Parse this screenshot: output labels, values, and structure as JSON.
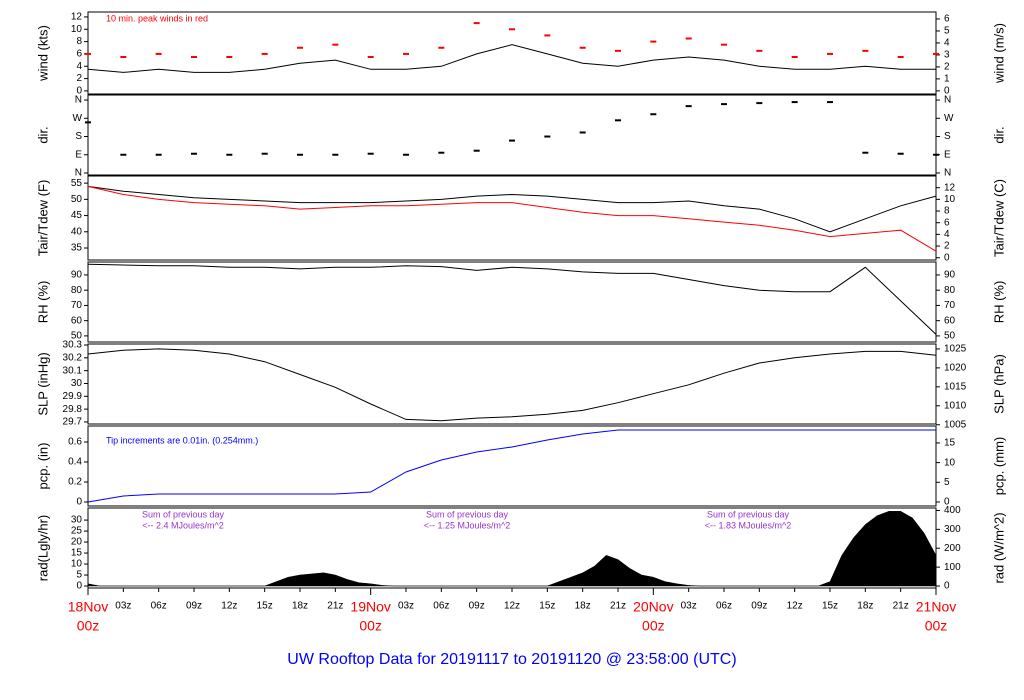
{
  "title": "UW Rooftop Data for 20191117  to  20191120 @ 23:58:00  (UTC)",
  "chart_data": [
    {
      "type": "line",
      "ylabel": "wind (kts)",
      "y2label": "wind (m/s)",
      "annotation": "10 min. peak winds in red",
      "xlim": [
        0,
        72
      ],
      "ylim": [
        -0.5,
        12.8
      ],
      "yticks": [
        0,
        2,
        4,
        6,
        8,
        10,
        12
      ],
      "y2lim": [
        -0.26,
        6.58
      ],
      "y2ticks": [
        0,
        1,
        2,
        3,
        4,
        5,
        6
      ],
      "x": [
        0,
        3,
        6,
        9,
        12,
        15,
        18,
        21,
        24,
        27,
        30,
        33,
        36,
        39,
        42,
        45,
        48,
        51,
        54,
        57,
        60,
        63,
        66,
        69,
        72
      ],
      "series": [
        {
          "color": "#000000",
          "kind": "line",
          "values": [
            3.5,
            3,
            3.5,
            3,
            3,
            3.5,
            4.5,
            5,
            3.5,
            3.5,
            4,
            6,
            7.5,
            6,
            4.5,
            4,
            5,
            5.5,
            5,
            4,
            3.5,
            3.5,
            4,
            3.5,
            3.5
          ]
        },
        {
          "color": "#ff0000",
          "kind": "dash",
          "values": [
            6,
            5.5,
            6,
            5.5,
            5.5,
            6,
            7,
            7.5,
            5.5,
            6,
            7,
            11,
            10,
            9,
            7,
            6.5,
            8,
            8.5,
            7.5,
            6.5,
            5.5,
            6,
            6.5,
            5.5,
            6
          ]
        }
      ]
    },
    {
      "type": "scatter",
      "ylabel": "dir.",
      "y2label": "dir.",
      "xlim": [
        0,
        72
      ],
      "ylim": [
        -10,
        385
      ],
      "yticks": [
        {
          "value": 0,
          "label": "N"
        },
        {
          "value": 90,
          "label": "E"
        },
        {
          "value": 180,
          "label": "S"
        },
        {
          "value": 270,
          "label": "W"
        },
        {
          "value": 360,
          "label": "N"
        }
      ],
      "y2lim": [
        -10,
        385
      ],
      "y2ticks": [
        {
          "value": 0,
          "label": "N"
        },
        {
          "value": 90,
          "label": "E"
        },
        {
          "value": 180,
          "label": "S"
        },
        {
          "value": 270,
          "label": "W"
        },
        {
          "value": 360,
          "label": "N"
        }
      ],
      "x": [
        0,
        3,
        6,
        9,
        12,
        15,
        18,
        21,
        24,
        27,
        30,
        33,
        36,
        39,
        42,
        45,
        48,
        51,
        54,
        57,
        60,
        63,
        66,
        69,
        72
      ],
      "series": [
        {
          "color": "#000000",
          "kind": "dash",
          "values": [
            250,
            90,
            90,
            95,
            90,
            95,
            90,
            90,
            95,
            90,
            100,
            110,
            160,
            180,
            200,
            260,
            290,
            330,
            340,
            345,
            350,
            350,
            100,
            95,
            90
          ]
        }
      ]
    },
    {
      "type": "line",
      "ylabel": "Tair/Tdew (F)",
      "y2label": "Tair/Tdew (C)",
      "xlim": [
        0,
        72
      ],
      "ylim": [
        31.3,
        57.2
      ],
      "yticks": [
        35,
        40,
        45,
        50,
        55
      ],
      "y2lim": [
        -0.39,
        14
      ],
      "y2ticks": [
        0,
        2,
        4,
        6,
        8,
        10,
        12
      ],
      "x": [
        0,
        3,
        6,
        9,
        12,
        15,
        18,
        21,
        24,
        27,
        30,
        33,
        36,
        39,
        42,
        45,
        48,
        51,
        54,
        57,
        60,
        63,
        66,
        69,
        72
      ],
      "series": [
        {
          "color": "#000000",
          "kind": "line",
          "values": [
            54,
            52.5,
            51.5,
            50.5,
            50,
            49.5,
            49,
            49,
            49,
            49.5,
            50,
            51,
            51.5,
            51,
            50,
            49,
            49,
            49.5,
            48,
            47,
            44,
            40,
            44,
            48,
            51
          ]
        },
        {
          "color": "#ff0000",
          "kind": "line",
          "values": [
            54,
            51.5,
            50,
            49,
            48.5,
            48,
            47,
            47.5,
            48,
            48,
            48.5,
            49,
            49,
            47.5,
            46,
            45,
            45,
            44,
            43,
            42,
            40.5,
            38.5,
            39.5,
            40.5,
            34
          ]
        }
      ]
    },
    {
      "type": "line",
      "ylabel": "RH (%)",
      "y2label": "RH (%)",
      "xlim": [
        0,
        72
      ],
      "ylim": [
        46,
        98.5
      ],
      "yticks": [
        50,
        60,
        70,
        80,
        90
      ],
      "y2lim": [
        46,
        98.5
      ],
      "y2ticks": [
        50,
        60,
        70,
        80,
        90
      ],
      "x": [
        0,
        3,
        6,
        9,
        12,
        15,
        18,
        21,
        24,
        27,
        30,
        33,
        36,
        39,
        42,
        45,
        48,
        51,
        54,
        57,
        60,
        63,
        66,
        69,
        72
      ],
      "series": [
        {
          "color": "#000000",
          "kind": "line",
          "values": [
            97,
            96.5,
            96,
            96,
            95,
            95,
            94,
            95,
            95,
            96,
            95.5,
            93,
            95,
            94,
            92,
            91,
            91,
            87,
            83,
            80,
            79,
            79,
            95,
            73,
            51
          ]
        }
      ]
    },
    {
      "type": "line",
      "ylabel": "SLP (inHg)",
      "y2label": "SLP (hPa)",
      "xlim": [
        0,
        72
      ],
      "ylim": [
        29.684,
        30.308
      ],
      "yticks": [
        29.7,
        29.8,
        29.9,
        30,
        30.1,
        30.2,
        30.3
      ],
      "y2lim": [
        1005.2,
        1026.3
      ],
      "y2ticks": [
        1005,
        1010,
        1015,
        1020,
        1025
      ],
      "x": [
        0,
        3,
        6,
        9,
        12,
        15,
        18,
        21,
        24,
        27,
        30,
        33,
        36,
        39,
        42,
        45,
        48,
        51,
        54,
        57,
        60,
        63,
        66,
        69,
        72
      ],
      "series": [
        {
          "color": "#000000",
          "kind": "line",
          "values": [
            30.23,
            30.26,
            30.27,
            30.26,
            30.23,
            30.17,
            30.07,
            29.97,
            29.84,
            29.72,
            29.71,
            29.73,
            29.74,
            29.76,
            29.79,
            29.85,
            29.92,
            29.99,
            30.08,
            30.16,
            30.2,
            30.23,
            30.25,
            30.25,
            30.22
          ]
        }
      ]
    },
    {
      "type": "line",
      "ylabel": "pcp. (in)",
      "y2label": "pcp. (mm)",
      "annotation": "Tip increments are 0.01in. (0.254mm.)",
      "xlim": [
        0,
        72
      ],
      "ylim": [
        -0.04,
        0.76
      ],
      "yticks": [
        0,
        0.2,
        0.4,
        0.6
      ],
      "y2lim": [
        -1.02,
        19.3
      ],
      "y2ticks": [
        0,
        5,
        10,
        15
      ],
      "x": [
        0,
        3,
        6,
        9,
        12,
        15,
        18,
        21,
        24,
        27,
        30,
        33,
        36,
        39,
        42,
        45,
        48,
        51,
        54,
        57,
        60,
        63,
        66,
        69,
        72
      ],
      "series": [
        {
          "color": "#0000ff",
          "kind": "line",
          "values": [
            0,
            0.06,
            0.08,
            0.08,
            0.08,
            0.08,
            0.08,
            0.08,
            0.1,
            0.3,
            0.42,
            0.5,
            0.55,
            0.62,
            0.68,
            0.72,
            0.72,
            0.72,
            0.72,
            0.72,
            0.72,
            0.72,
            0.72,
            0.72,
            0.72
          ]
        }
      ]
    },
    {
      "type": "area",
      "ylabel": "rad(Lgly/hr)",
      "y2label": "rad (W/m^2)",
      "annotations": [
        "Sum of previous day",
        "<-- 2.4 MJoules/m^2",
        "Sum of previous day",
        "<-- 1.25 MJoules/m^2",
        "Sum of previous day",
        "<-- 1.83 MJoules/m^2"
      ],
      "xlim": [
        0,
        72
      ],
      "ylim": [
        -0.9,
        35.5
      ],
      "yticks": [
        0,
        5,
        10,
        15,
        20,
        25,
        30
      ],
      "y2lim": [
        -10.5,
        413
      ],
      "y2ticks": [
        0,
        100,
        200,
        300,
        400
      ],
      "x": [
        0,
        1,
        15,
        16,
        17,
        18,
        19,
        20,
        21,
        22,
        23,
        24,
        25,
        26,
        39,
        40,
        41,
        42,
        43,
        44,
        45,
        46,
        47,
        48,
        49,
        50,
        51,
        52,
        62,
        63,
        64,
        65,
        66,
        67,
        68,
        69,
        70,
        71,
        72
      ],
      "series": [
        {
          "color": "#000000",
          "kind": "area",
          "values": [
            1,
            0,
            0,
            2,
            4,
            5,
            5.5,
            6,
            5,
            3,
            1.5,
            1,
            0.3,
            0,
            0,
            2,
            4,
            6,
            9,
            14,
            12,
            8,
            5,
            4,
            2,
            1,
            0.3,
            0,
            0,
            2,
            14,
            22,
            28,
            32,
            34,
            34,
            31,
            24,
            14
          ]
        }
      ],
      "xticks": [
        {
          "value": 0,
          "label": "00z"
        },
        {
          "value": 3,
          "label": "03z"
        },
        {
          "value": 6,
          "label": "06z"
        },
        {
          "value": 9,
          "label": "09z"
        },
        {
          "value": 12,
          "label": "12z"
        },
        {
          "value": 15,
          "label": "15z"
        },
        {
          "value": 18,
          "label": "18z"
        },
        {
          "value": 21,
          "label": "21z"
        },
        {
          "value": 24,
          "label": "00z"
        },
        {
          "value": 27,
          "label": "03z"
        },
        {
          "value": 30,
          "label": "06z"
        },
        {
          "value": 33,
          "label": "09z"
        },
        {
          "value": 36,
          "label": "12z"
        },
        {
          "value": 39,
          "label": "15z"
        },
        {
          "value": 42,
          "label": "18z"
        },
        {
          "value": 45,
          "label": "21z"
        },
        {
          "value": 48,
          "label": "00z"
        },
        {
          "value": 51,
          "label": "03z"
        },
        {
          "value": 54,
          "label": "06z"
        },
        {
          "value": 57,
          "label": "09z"
        },
        {
          "value": 60,
          "label": "12z"
        },
        {
          "value": 63,
          "label": "15z"
        },
        {
          "value": 66,
          "label": "18z"
        },
        {
          "value": 69,
          "label": "21z"
        },
        {
          "value": 72,
          "label": "00z"
        }
      ],
      "xdates": [
        {
          "value": 0,
          "label": "18Nov"
        },
        {
          "value": 24,
          "label": "19Nov"
        },
        {
          "value": 48,
          "label": "20Nov"
        },
        {
          "value": 72,
          "label": "21Nov"
        }
      ]
    }
  ]
}
